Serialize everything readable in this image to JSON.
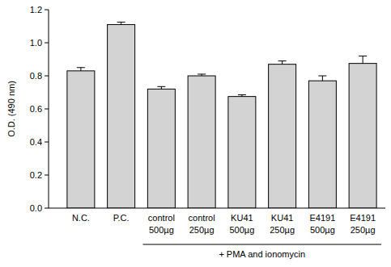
{
  "chart_data": {
    "type": "bar",
    "y_label": "O.D. (490 nm)",
    "annotation": "+ PMA and ionomycin",
    "categories": [
      "N.C.",
      "P.C.",
      "control 500µg",
      "control 250µg",
      "KU41 500µg",
      "KU41 250µg",
      "E4191 500µg",
      "E4191 250µg"
    ],
    "values": [
      0.83,
      1.11,
      0.72,
      0.8,
      0.675,
      0.87,
      0.77,
      0.875
    ],
    "errors": [
      0.02,
      0.015,
      0.015,
      0.01,
      0.01,
      0.02,
      0.03,
      0.045
    ],
    "color": "#d3d3d3",
    "ylim": [
      0,
      1.2
    ],
    "yticks": [
      {
        "value": 0,
        "label": "0.0"
      },
      0.2,
      0.4,
      0.6,
      0.8,
      {
        "value": 1,
        "label": "1.0"
      },
      1.2
    ],
    "grid": false
  }
}
